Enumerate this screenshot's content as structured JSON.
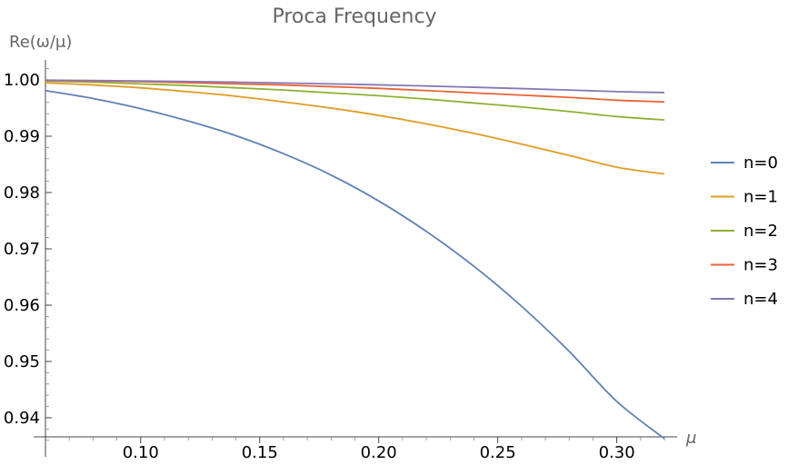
{
  "chart_data": {
    "type": "line",
    "title": "Proca Frequency",
    "xlabel": "μ",
    "ylabel": "Re(ω/μ)",
    "xlim": [
      0.06,
      0.32
    ],
    "ylim": [
      0.936,
      1.003
    ],
    "xticks": [
      {
        "value": 0.1,
        "label": "0.10"
      },
      {
        "value": 0.15,
        "label": "0.15"
      },
      {
        "value": 0.2,
        "label": "0.20"
      },
      {
        "value": 0.25,
        "label": "0.25"
      },
      {
        "value": 0.3,
        "label": "0.30"
      }
    ],
    "yticks": [
      {
        "value": 1.0,
        "label": "1.00"
      },
      {
        "value": 0.99,
        "label": "0.99"
      },
      {
        "value": 0.98,
        "label": "0.98"
      },
      {
        "value": 0.97,
        "label": "0.97"
      },
      {
        "value": 0.96,
        "label": "0.96"
      },
      {
        "value": 0.95,
        "label": "0.95"
      },
      {
        "value": 0.94,
        "label": "0.94"
      }
    ],
    "grid": false,
    "legend": "right",
    "x": [
      0.06,
      0.08,
      0.1,
      0.12,
      0.14,
      0.16,
      0.18,
      0.2,
      0.22,
      0.24,
      0.26,
      0.28,
      0.3,
      0.32
    ],
    "series": [
      {
        "name": "n=0",
        "color": "#5e81b5",
        "values": [
          0.9981,
          0.9967,
          0.9949,
          0.9927,
          0.9901,
          0.9869,
          0.9831,
          0.9785,
          0.9731,
          0.9669,
          0.9598,
          0.9518,
          0.9429,
          0.9363
        ]
      },
      {
        "name": "n=1",
        "color": "#e19c24",
        "values": [
          0.9995,
          0.9991,
          0.9986,
          0.9979,
          0.9971,
          0.9961,
          0.995,
          0.9937,
          0.9922,
          0.9905,
          0.9886,
          0.9866,
          0.9845,
          0.9833
        ]
      },
      {
        "name": "n=2",
        "color": "#8fb032",
        "values": [
          0.9998,
          0.9996,
          0.9993,
          0.999,
          0.9986,
          0.9982,
          0.9977,
          0.9972,
          0.9966,
          0.9959,
          0.9952,
          0.9944,
          0.9935,
          0.9929
        ]
      },
      {
        "name": "n=3",
        "color": "#eb6235",
        "values": [
          0.9999,
          0.9998,
          0.9997,
          0.9995,
          0.9993,
          0.9991,
          0.9988,
          0.9985,
          0.9981,
          0.9977,
          0.9973,
          0.9969,
          0.9964,
          0.9961
        ]
      },
      {
        "name": "n=4",
        "color": "#8778b3",
        "values": [
          0.99995,
          0.9999,
          0.99982,
          0.99972,
          0.9996,
          0.99946,
          0.9993,
          0.99912,
          0.99892,
          0.9987,
          0.99846,
          0.9982,
          0.99792,
          0.99775
        ]
      }
    ]
  }
}
